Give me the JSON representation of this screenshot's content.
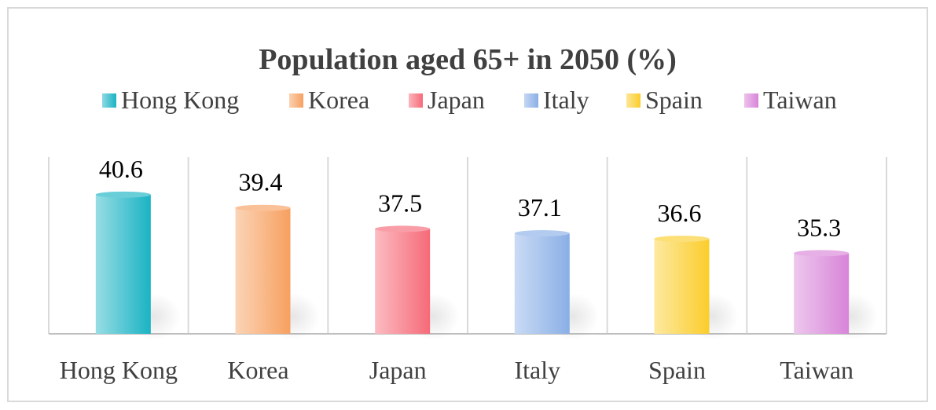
{
  "chart_data": {
    "type": "bar",
    "title": "Population aged 65+ in 2050 (%)",
    "categories": [
      "Hong Kong",
      "Korea",
      "Japan",
      "Italy",
      "Spain",
      "Taiwan"
    ],
    "values": [
      40.6,
      39.4,
      37.5,
      37.1,
      36.6,
      35.3
    ],
    "colors": [
      "#1ab3c4",
      "#f7a060",
      "#f66a78",
      "#8aafe6",
      "#fbcd2c",
      "#d884d8"
    ],
    "legend": {
      "placement": "top",
      "entries": [
        "Hong Kong",
        "Korea",
        "Japan",
        "Italy",
        "Spain",
        "Taiwan"
      ]
    },
    "ylim": [
      28,
      44
    ],
    "grid": false,
    "style": "3d-cylinder"
  }
}
